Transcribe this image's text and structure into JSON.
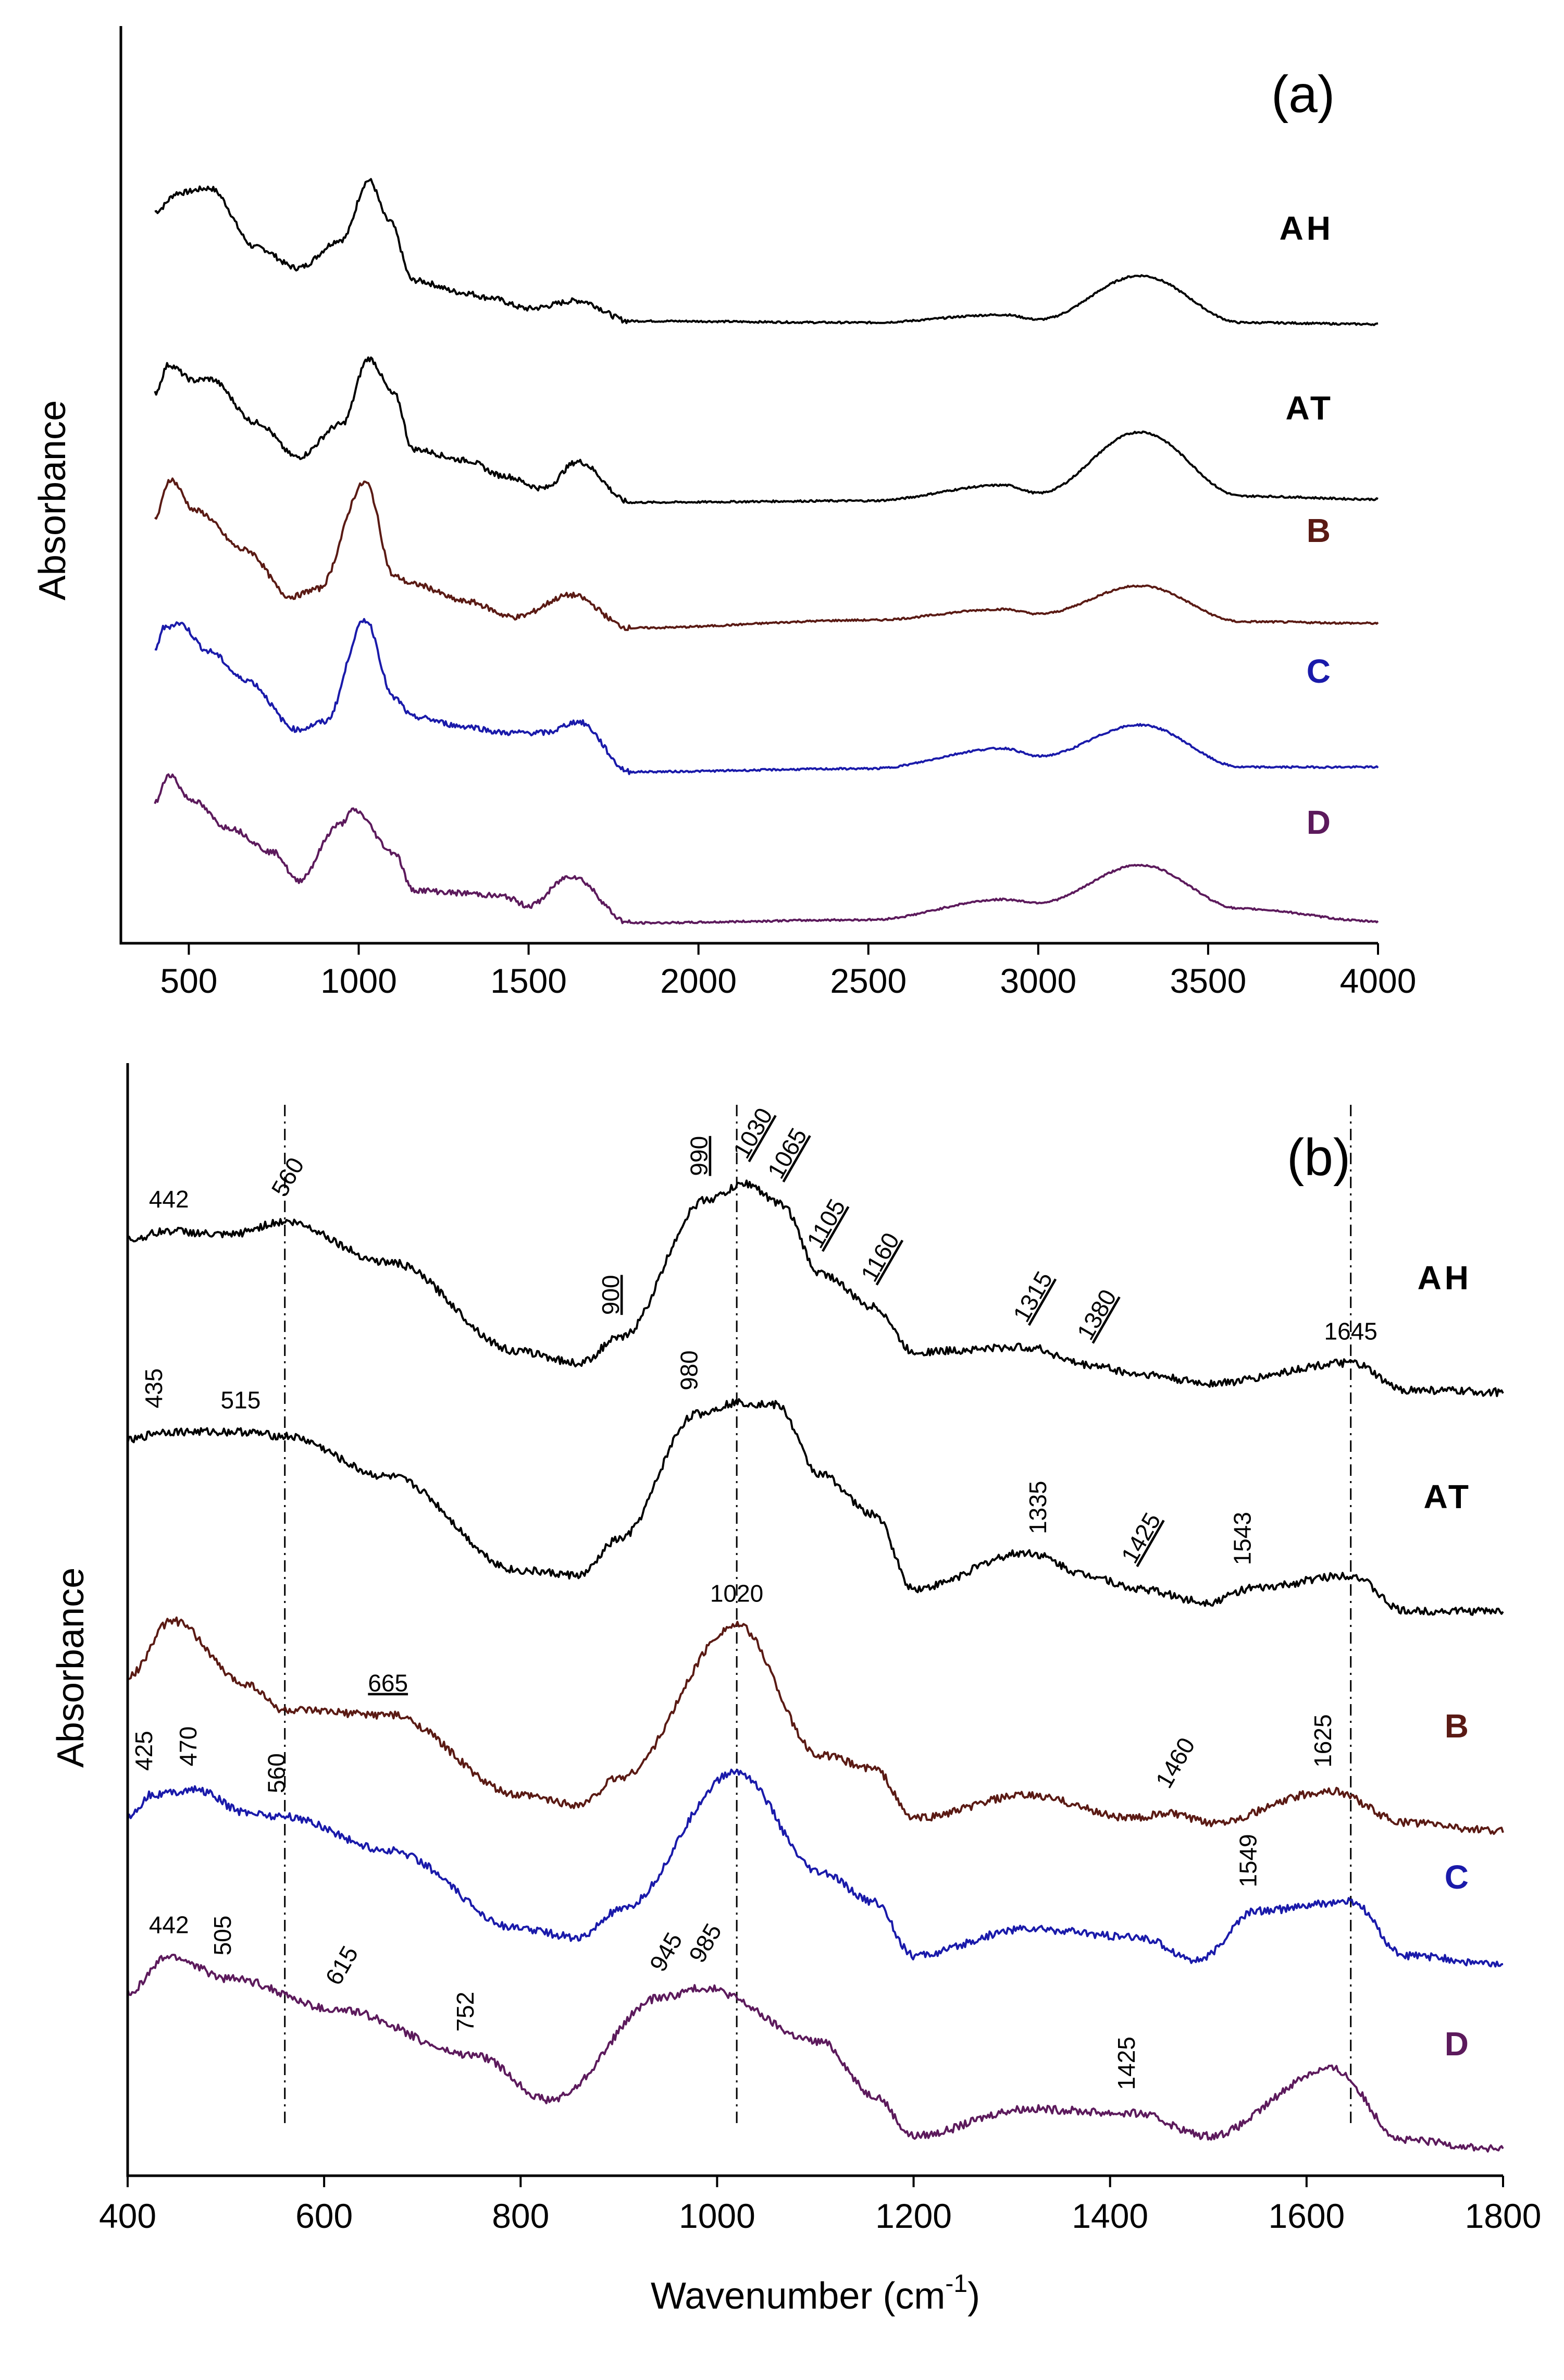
{
  "chart_data": [
    {
      "panel": "(a)",
      "type": "line",
      "xlabel": "",
      "ylabel": "Absorbance",
      "xlim": [
        300,
        4000
      ],
      "xticks": [
        "500",
        "1000",
        "1500",
        "2000",
        "2500",
        "3000",
        "3500",
        "4000"
      ],
      "yticks": [],
      "series": [
        {
          "name": "AH",
          "color": "#000000",
          "peaks": [
            [
              400,
              0.78
            ],
            [
              470,
              0.9
            ],
            [
              560,
              0.93
            ],
            [
              700,
              0.55
            ],
            [
              820,
              0.42
            ],
            [
              950,
              0.6
            ],
            [
              1030,
              0.98
            ],
            [
              1090,
              0.72
            ],
            [
              1160,
              0.34
            ],
            [
              1315,
              0.26
            ],
            [
              1380,
              0.23
            ],
            [
              1500,
              0.16
            ],
            [
              1645,
              0.21
            ],
            [
              1800,
              0.08
            ],
            [
              2500,
              0.07
            ],
            [
              2900,
              0.12
            ],
            [
              3000,
              0.09
            ],
            [
              3300,
              0.37
            ],
            [
              3600,
              0.07
            ],
            [
              4000,
              0.06
            ]
          ]
        },
        {
          "name": "AT",
          "color": "#000000",
          "peaks": [
            [
              400,
              0.77
            ],
            [
              440,
              0.95
            ],
            [
              515,
              0.85
            ],
            [
              560,
              0.86
            ],
            [
              700,
              0.58
            ],
            [
              820,
              0.36
            ],
            [
              950,
              0.57
            ],
            [
              1030,
              0.99
            ],
            [
              1105,
              0.76
            ],
            [
              1160,
              0.41
            ],
            [
              1315,
              0.34
            ],
            [
              1425,
              0.24
            ],
            [
              1543,
              0.16
            ],
            [
              1645,
              0.33
            ],
            [
              1800,
              0.07
            ],
            [
              2500,
              0.08
            ],
            [
              2900,
              0.18
            ],
            [
              3000,
              0.13
            ],
            [
              3300,
              0.52
            ],
            [
              3600,
              0.11
            ],
            [
              4000,
              0.09
            ]
          ]
        },
        {
          "name": "B",
          "color": "#5a1a14",
          "peaks": [
            [
              400,
              0.75
            ],
            [
              445,
              1.0
            ],
            [
              520,
              0.8
            ],
            [
              665,
              0.55
            ],
            [
              800,
              0.25
            ],
            [
              880,
              0.3
            ],
            [
              1020,
              0.98
            ],
            [
              1105,
              0.38
            ],
            [
              1160,
              0.33
            ],
            [
              1315,
              0.22
            ],
            [
              1460,
              0.12
            ],
            [
              1625,
              0.26
            ],
            [
              1800,
              0.05
            ],
            [
              2500,
              0.1
            ],
            [
              2900,
              0.17
            ],
            [
              3000,
              0.14
            ],
            [
              3300,
              0.32
            ],
            [
              3600,
              0.09
            ],
            [
              4000,
              0.08
            ]
          ]
        },
        {
          "name": "C",
          "color": "#1a1aaa",
          "peaks": [
            [
              400,
              0.8
            ],
            [
              425,
              0.95
            ],
            [
              470,
              0.98
            ],
            [
              560,
              0.8
            ],
            [
              665,
              0.62
            ],
            [
              820,
              0.3
            ],
            [
              900,
              0.35
            ],
            [
              1020,
              1.0
            ],
            [
              1105,
              0.5
            ],
            [
              1160,
              0.38
            ],
            [
              1315,
              0.32
            ],
            [
              1430,
              0.28
            ],
            [
              1549,
              0.28
            ],
            [
              1645,
              0.35
            ],
            [
              1800,
              0.03
            ],
            [
              2500,
              0.05
            ],
            [
              2900,
              0.18
            ],
            [
              3000,
              0.13
            ],
            [
              3300,
              0.33
            ],
            [
              3600,
              0.06
            ],
            [
              4000,
              0.06
            ]
          ]
        },
        {
          "name": "D",
          "color": "#5c1a5c",
          "peaks": [
            [
              400,
              0.8
            ],
            [
              442,
              0.98
            ],
            [
              505,
              0.82
            ],
            [
              615,
              0.64
            ],
            [
              752,
              0.48
            ],
            [
              820,
              0.3
            ],
            [
              945,
              0.66
            ],
            [
              985,
              0.75
            ],
            [
              1105,
              0.48
            ],
            [
              1160,
              0.24
            ],
            [
              1315,
              0.22
            ],
            [
              1425,
              0.2
            ],
            [
              1500,
              0.14
            ],
            [
              1625,
              0.33
            ],
            [
              1800,
              0.03
            ],
            [
              2500,
              0.05
            ],
            [
              2900,
              0.18
            ],
            [
              3000,
              0.16
            ],
            [
              3300,
              0.4
            ],
            [
              3600,
              0.12
            ],
            [
              4000,
              0.04
            ]
          ]
        }
      ]
    },
    {
      "panel": "(b)",
      "type": "line",
      "xlabel": "Wavenumber (cm",
      "xlabel_sup": "-1",
      "xlabel_end": ")",
      "ylabel": "Absorbance",
      "xlim": [
        400,
        1800
      ],
      "xticks": [
        "400",
        "600",
        "800",
        "1000",
        "1200",
        "1400",
        "1600",
        "1800"
      ],
      "yticks": [],
      "series": [
        {
          "name": "AH",
          "color": "#000000",
          "peaks": [
            [
              400,
              0.7
            ],
            [
              442,
              0.74
            ],
            [
              500,
              0.72
            ],
            [
              560,
              0.78
            ],
            [
              665,
              0.6
            ],
            [
              800,
              0.2
            ],
            [
              860,
              0.15
            ],
            [
              900,
              0.26
            ],
            [
              990,
              0.88
            ],
            [
              1030,
              0.95
            ],
            [
              1065,
              0.86
            ],
            [
              1105,
              0.55
            ],
            [
              1160,
              0.4
            ],
            [
              1200,
              0.2
            ],
            [
              1315,
              0.22
            ],
            [
              1380,
              0.14
            ],
            [
              1430,
              0.1
            ],
            [
              1500,
              0.06
            ],
            [
              1645,
              0.15
            ],
            [
              1700,
              0.03
            ],
            [
              1800,
              0.02
            ]
          ]
        },
        {
          "name": "AT",
          "color": "#000000",
          "peaks": [
            [
              400,
              0.78
            ],
            [
              435,
              0.82
            ],
            [
              515,
              0.82
            ],
            [
              560,
              0.8
            ],
            [
              665,
              0.62
            ],
            [
              800,
              0.2
            ],
            [
              860,
              0.18
            ],
            [
              900,
              0.34
            ],
            [
              980,
              0.9
            ],
            [
              1020,
              0.95
            ],
            [
              1060,
              0.94
            ],
            [
              1105,
              0.63
            ],
            [
              1160,
              0.45
            ],
            [
              1200,
              0.12
            ],
            [
              1315,
              0.28
            ],
            [
              1380,
              0.18
            ],
            [
              1425,
              0.12
            ],
            [
              1500,
              0.06
            ],
            [
              1543,
              0.12
            ],
            [
              1645,
              0.18
            ],
            [
              1700,
              0.02
            ],
            [
              1800,
              0.02
            ]
          ]
        },
        {
          "name": "B",
          "color": "#5a1a14",
          "peaks": [
            [
              400,
              0.75
            ],
            [
              445,
              1.0
            ],
            [
              520,
              0.72
            ],
            [
              560,
              0.6
            ],
            [
              665,
              0.58
            ],
            [
              800,
              0.22
            ],
            [
              860,
              0.18
            ],
            [
              900,
              0.3
            ],
            [
              1020,
              0.98
            ],
            [
              1105,
              0.4
            ],
            [
              1160,
              0.34
            ],
            [
              1200,
              0.12
            ],
            [
              1315,
              0.22
            ],
            [
              1425,
              0.12
            ],
            [
              1460,
              0.14
            ],
            [
              1500,
              0.1
            ],
            [
              1625,
              0.24
            ],
            [
              1700,
              0.1
            ],
            [
              1800,
              0.06
            ]
          ]
        },
        {
          "name": "C",
          "color": "#1a1aaa",
          "peaks": [
            [
              400,
              0.8
            ],
            [
              425,
              0.9
            ],
            [
              470,
              0.92
            ],
            [
              520,
              0.82
            ],
            [
              560,
              0.8
            ],
            [
              665,
              0.65
            ],
            [
              800,
              0.3
            ],
            [
              860,
              0.26
            ],
            [
              900,
              0.38
            ],
            [
              1020,
              1.0
            ],
            [
              1105,
              0.55
            ],
            [
              1160,
              0.42
            ],
            [
              1200,
              0.18
            ],
            [
              1315,
              0.3
            ],
            [
              1430,
              0.26
            ],
            [
              1490,
              0.16
            ],
            [
              1549,
              0.38
            ],
            [
              1645,
              0.42
            ],
            [
              1700,
              0.18
            ],
            [
              1800,
              0.14
            ]
          ]
        },
        {
          "name": "D",
          "color": "#5c1a5c",
          "peaks": [
            [
              400,
              0.76
            ],
            [
              442,
              0.92
            ],
            [
              505,
              0.82
            ],
            [
              615,
              0.68
            ],
            [
              752,
              0.48
            ],
            [
              830,
              0.28
            ],
            [
              945,
              0.74
            ],
            [
              985,
              0.78
            ],
            [
              1105,
              0.54
            ],
            [
              1160,
              0.3
            ],
            [
              1200,
              0.12
            ],
            [
              1315,
              0.24
            ],
            [
              1425,
              0.22
            ],
            [
              1500,
              0.12
            ],
            [
              1625,
              0.42
            ],
            [
              1700,
              0.1
            ],
            [
              1800,
              0.06
            ]
          ]
        }
      ],
      "annotations": [
        {
          "text": "442",
          "x": 442,
          "series": "AH",
          "angle": 0
        },
        {
          "text": "560",
          "x": 560,
          "series": "AH",
          "angle": -60
        },
        {
          "text": "990",
          "x": 990,
          "series": "AH",
          "angle": -90,
          "underline": true
        },
        {
          "text": "1030",
          "x": 1030,
          "series": "AH",
          "angle": -60,
          "underline": true
        },
        {
          "text": "1065",
          "x": 1065,
          "series": "AH",
          "angle": -60,
          "underline": true
        },
        {
          "text": "1105",
          "x": 1105,
          "series": "AH",
          "angle": -60,
          "underline": true
        },
        {
          "text": "1160",
          "x": 1160,
          "series": "AH",
          "angle": -60,
          "underline": true
        },
        {
          "text": "1315",
          "x": 1315,
          "series": "AH",
          "angle": -60,
          "underline": true
        },
        {
          "text": "1380",
          "x": 1380,
          "series": "AH",
          "angle": -60,
          "underline": true
        },
        {
          "text": "900",
          "x": 900,
          "series": "AH",
          "angle": -90,
          "underline": true
        },
        {
          "text": "1645",
          "x": 1645,
          "series": "AH",
          "angle": 0
        },
        {
          "text": "435",
          "x": 435,
          "series": "AT",
          "angle": -90
        },
        {
          "text": "515",
          "x": 515,
          "series": "AT",
          "angle": 0
        },
        {
          "text": "980",
          "x": 980,
          "series": "AT",
          "angle": -90
        },
        {
          "text": "1335",
          "x": 1335,
          "series": "AT",
          "angle": -90
        },
        {
          "text": "1425",
          "x": 1425,
          "series": "AT",
          "angle": -60,
          "underline": true
        },
        {
          "text": "1543",
          "x": 1543,
          "series": "AT",
          "angle": -90
        },
        {
          "text": "1020",
          "x": 1020,
          "series": "B",
          "angle": 0
        },
        {
          "text": "665",
          "x": 665,
          "series": "B",
          "angle": 0,
          "underline": true
        },
        {
          "text": "1460",
          "x": 1460,
          "series": "B",
          "angle": -60
        },
        {
          "text": "1625",
          "x": 1625,
          "series": "B",
          "angle": -90
        },
        {
          "text": "425",
          "x": 425,
          "series": "C",
          "angle": -90
        },
        {
          "text": "470",
          "x": 470,
          "series": "C",
          "angle": -90
        },
        {
          "text": "560",
          "x": 560,
          "series": "C",
          "angle": -90
        },
        {
          "text": "1549",
          "x": 1549,
          "series": "C",
          "angle": -90
        },
        {
          "text": "442",
          "x": 442,
          "series": "D",
          "angle": 0
        },
        {
          "text": "505",
          "x": 505,
          "series": "D",
          "angle": -90
        },
        {
          "text": "615",
          "x": 615,
          "series": "D",
          "angle": -60
        },
        {
          "text": "752",
          "x": 752,
          "series": "D",
          "angle": -90
        },
        {
          "text": "945",
          "x": 945,
          "series": "D",
          "angle": -60
        },
        {
          "text": "985",
          "x": 985,
          "series": "D",
          "angle": -60
        },
        {
          "text": "1425",
          "x": 1425,
          "series": "D",
          "angle": -90
        }
      ],
      "reference_lines": [
        560,
        1020,
        1645
      ]
    }
  ]
}
